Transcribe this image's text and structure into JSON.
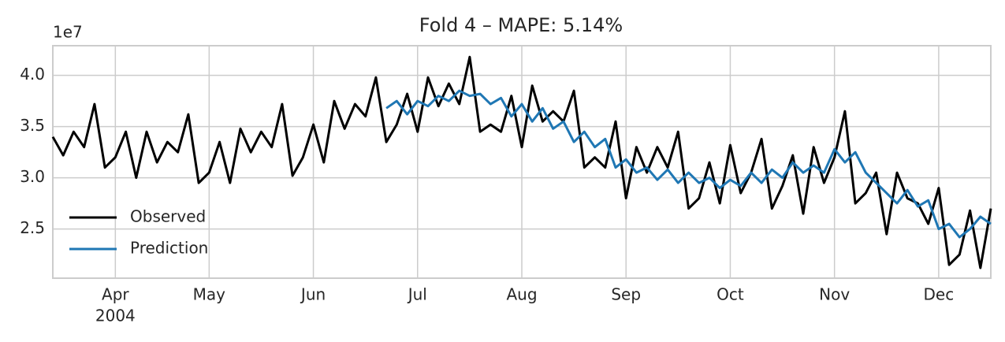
{
  "chart_data": {
    "type": "line",
    "title": "Fold 4 – MAPE: 5.14%",
    "offset_label": "1e7",
    "x_year_label": "2004",
    "categories": [
      null,
      null,
      null,
      null,
      null,
      null,
      "Apr",
      null,
      null,
      null,
      null,
      null,
      null,
      null,
      null,
      "May",
      null,
      null,
      null,
      null,
      null,
      null,
      null,
      null,
      null,
      "Jun",
      null,
      null,
      null,
      null,
      null,
      null,
      null,
      null,
      null,
      "Jul",
      null,
      null,
      null,
      null,
      null,
      null,
      null,
      null,
      null,
      "Aug",
      null,
      null,
      null,
      null,
      null,
      null,
      null,
      null,
      null,
      "Sep",
      null,
      null,
      null,
      null,
      null,
      null,
      null,
      null,
      null,
      "Oct",
      null,
      null,
      null,
      null,
      null,
      null,
      null,
      null,
      null,
      "Nov",
      null,
      null,
      null,
      null,
      null,
      null,
      null,
      null,
      null,
      "Dec",
      null,
      null,
      null,
      null,
      null
    ],
    "series": [
      {
        "name": "Observed",
        "color": "#000000",
        "values": [
          3.4,
          3.22,
          3.45,
          3.3,
          3.72,
          3.1,
          3.2,
          3.45,
          3.0,
          3.45,
          3.15,
          3.35,
          3.25,
          3.62,
          2.95,
          3.05,
          3.35,
          2.95,
          3.48,
          3.25,
          3.45,
          3.3,
          3.72,
          3.02,
          3.2,
          3.52,
          3.15,
          3.75,
          3.48,
          3.72,
          3.6,
          3.98,
          3.35,
          3.52,
          3.82,
          3.45,
          3.98,
          3.7,
          3.92,
          3.72,
          4.18,
          3.45,
          3.52,
          3.45,
          3.8,
          3.3,
          3.9,
          3.55,
          3.65,
          3.55,
          3.85,
          3.1,
          3.2,
          3.1,
          3.55,
          2.8,
          3.3,
          3.05,
          3.3,
          3.1,
          3.45,
          2.7,
          2.8,
          3.15,
          2.75,
          3.32,
          2.85,
          3.05,
          3.38,
          2.7,
          2.92,
          3.22,
          2.65,
          3.3,
          2.95,
          3.2,
          3.65,
          2.75,
          2.85,
          3.05,
          2.45,
          3.05,
          2.8,
          2.75,
          2.55,
          2.9,
          2.15,
          2.25,
          2.68,
          2.12,
          2.7
        ]
      },
      {
        "name": "Prediction",
        "color": "#1f77b4",
        "values": [
          null,
          null,
          null,
          null,
          null,
          null,
          null,
          null,
          null,
          null,
          null,
          null,
          null,
          null,
          null,
          null,
          null,
          null,
          null,
          null,
          null,
          null,
          null,
          null,
          null,
          null,
          null,
          null,
          null,
          null,
          null,
          null,
          3.68,
          3.75,
          3.62,
          3.75,
          3.7,
          3.8,
          3.75,
          3.85,
          3.8,
          3.82,
          3.72,
          3.78,
          3.6,
          3.72,
          3.55,
          3.68,
          3.48,
          3.55,
          3.35,
          3.45,
          3.3,
          3.38,
          3.1,
          3.18,
          3.05,
          3.1,
          2.98,
          3.08,
          2.95,
          3.05,
          2.95,
          3.0,
          2.9,
          2.98,
          2.92,
          3.05,
          2.95,
          3.08,
          3.0,
          3.15,
          3.05,
          3.12,
          3.05,
          3.28,
          3.15,
          3.25,
          3.05,
          2.95,
          2.85,
          2.75,
          2.88,
          2.72,
          2.78,
          2.5,
          2.55,
          2.42,
          2.5,
          2.62,
          2.55
        ]
      }
    ],
    "ylim": [
      2.02,
      4.29
    ],
    "yticks": [
      2.5,
      {
        "value": 3.0,
        "label": "3.0"
      },
      3.5,
      {
        "value": 4.0,
        "label": "4.0"
      }
    ],
    "grid": true,
    "legend": "lower left"
  }
}
